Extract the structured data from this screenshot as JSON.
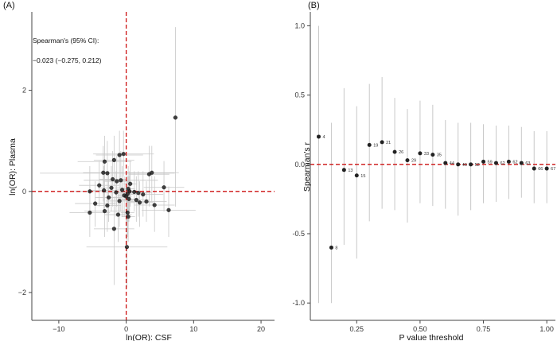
{
  "chart_data": [
    {
      "type": "scatter",
      "panel_label": "(A)",
      "xlabel": "ln(OR): CSF",
      "ylabel": "ln(OR): Plasma",
      "xlim": [
        -14,
        22
      ],
      "ylim": [
        -2.55,
        3.55
      ],
      "xticks": [
        -10,
        0,
        10,
        20
      ],
      "yticks": [
        -2,
        0,
        2
      ],
      "ref_lines": {
        "x": 0,
        "y": 0,
        "color": "#cc1111"
      },
      "grid": false,
      "annotation": {
        "line1": "Spearman's    (95% CI):",
        "line2": "−0.023  (−0.275,  0.212)"
      },
      "points": [
        {
          "x": 7.3,
          "y": 1.46,
          "xerr": 0.4,
          "ylo": -0.3,
          "yhi": 3.25
        },
        {
          "x": -0.4,
          "y": 0.74,
          "xerr": 4.5,
          "ylo": 0.3,
          "yhi": 1.2
        },
        {
          "x": -1.0,
          "y": 0.72,
          "xerr": 3.5,
          "ylo": 0.2,
          "yhi": 1.2
        },
        {
          "x": -1.8,
          "y": 0.62,
          "xerr": 3.0,
          "ylo": 0.1,
          "yhi": 1.1
        },
        {
          "x": -3.2,
          "y": 0.59,
          "xerr": 4.0,
          "ylo": 0.0,
          "yhi": 1.1
        },
        {
          "x": -3.4,
          "y": 0.37,
          "xerr": 3.0,
          "ylo": -0.2,
          "yhi": 0.9
        },
        {
          "x": -2.8,
          "y": 0.36,
          "xerr": 10.0,
          "ylo": -0.3,
          "yhi": 1.0
        },
        {
          "x": 3.8,
          "y": 0.37,
          "xerr": 4.0,
          "ylo": -0.2,
          "yhi": 0.9
        },
        {
          "x": 3.4,
          "y": 0.34,
          "xerr": 3.0,
          "ylo": -0.3,
          "yhi": 0.9
        },
        {
          "x": -2.0,
          "y": 0.24,
          "xerr": 2.0,
          "ylo": -0.3,
          "yhi": 0.8
        },
        {
          "x": -1.4,
          "y": 0.2,
          "xerr": 2.0,
          "ylo": -0.3,
          "yhi": 0.7
        },
        {
          "x": -0.8,
          "y": 0.22,
          "xerr": 5.5,
          "ylo": -0.4,
          "yhi": 0.8
        },
        {
          "x": 0.6,
          "y": 0.15,
          "xerr": 1.0,
          "ylo": -0.3,
          "yhi": 0.6
        },
        {
          "x": -4.0,
          "y": 0.12,
          "xerr": 3.0,
          "ylo": -0.3,
          "yhi": 0.6
        },
        {
          "x": 5.6,
          "y": 0.08,
          "xerr": 3.0,
          "ylo": -0.4,
          "yhi": 0.6
        },
        {
          "x": -2.2,
          "y": 0.07,
          "xerr": 2.0,
          "ylo": -0.4,
          "yhi": 0.5
        },
        {
          "x": 0.3,
          "y": 0.05,
          "xerr": 1.0,
          "ylo": -0.4,
          "yhi": 0.5
        },
        {
          "x": -0.6,
          "y": 0.03,
          "xerr": 1.0,
          "ylo": -0.5,
          "yhi": 0.5
        },
        {
          "x": -3.3,
          "y": 0.02,
          "xerr": 2.0,
          "ylo": -0.4,
          "yhi": 0.5
        },
        {
          "x": 0.5,
          "y": 0.0,
          "xerr": 1.0,
          "ylo": -0.4,
          "yhi": 0.4
        },
        {
          "x": 1.2,
          "y": -0.01,
          "xerr": 1.5,
          "ylo": -0.4,
          "yhi": 0.4
        },
        {
          "x": -5.4,
          "y": 0.0,
          "xerr": 3.0,
          "ylo": -0.5,
          "yhi": 0.5
        },
        {
          "x": -1.5,
          "y": -0.02,
          "xerr": 2.0,
          "ylo": -0.5,
          "yhi": 0.4
        },
        {
          "x": 1.8,
          "y": -0.03,
          "xerr": 2.0,
          "ylo": -0.5,
          "yhi": 0.4
        },
        {
          "x": 0.2,
          "y": -0.05,
          "xerr": 1.0,
          "ylo": -0.4,
          "yhi": 0.3
        },
        {
          "x": 2.5,
          "y": -0.06,
          "xerr": 3.0,
          "ylo": -0.5,
          "yhi": 0.4
        },
        {
          "x": -0.3,
          "y": -0.08,
          "xerr": 1.0,
          "ylo": -0.5,
          "yhi": 0.3
        },
        {
          "x": 0.0,
          "y": -0.1,
          "xerr": 0.8,
          "ylo": -0.6,
          "yhi": 0.4
        },
        {
          "x": -2.6,
          "y": -0.12,
          "xerr": 2.0,
          "ylo": -0.6,
          "yhi": 0.4
        },
        {
          "x": 0.4,
          "y": -0.15,
          "xerr": 1.5,
          "ylo": -0.6,
          "yhi": 0.3
        },
        {
          "x": 1.5,
          "y": -0.17,
          "xerr": 2.0,
          "ylo": -0.6,
          "yhi": 0.3
        },
        {
          "x": -1.0,
          "y": -0.19,
          "xerr": 2.0,
          "ylo": -0.7,
          "yhi": 0.3
        },
        {
          "x": 3.0,
          "y": -0.2,
          "xerr": 3.0,
          "ylo": -0.6,
          "yhi": 0.2
        },
        {
          "x": 2.0,
          "y": -0.22,
          "xerr": 2.0,
          "ylo": -0.7,
          "yhi": 0.2
        },
        {
          "x": 4.2,
          "y": -0.27,
          "xerr": 3.0,
          "ylo": -0.8,
          "yhi": 0.3
        },
        {
          "x": -4.6,
          "y": -0.24,
          "xerr": 3.0,
          "ylo": -0.7,
          "yhi": 0.2
        },
        {
          "x": -2.8,
          "y": -0.28,
          "xerr": 2.0,
          "ylo": -0.8,
          "yhi": 0.2
        },
        {
          "x": 6.3,
          "y": -0.37,
          "xerr": 4.0,
          "ylo": -0.9,
          "yhi": 0.1
        },
        {
          "x": -5.4,
          "y": -0.42,
          "xerr": 3.0,
          "ylo": -0.9,
          "yhi": 0.1
        },
        {
          "x": -3.2,
          "y": -0.39,
          "xerr": 3.0,
          "ylo": -0.9,
          "yhi": 0.1
        },
        {
          "x": 0.2,
          "y": -0.42,
          "xerr": 1.0,
          "ylo": -0.9,
          "yhi": 0.1
        },
        {
          "x": -1.2,
          "y": -0.46,
          "xerr": 2.0,
          "ylo": -1.0,
          "yhi": 0.0
        },
        {
          "x": 0.3,
          "y": -0.5,
          "xerr": 1.0,
          "ylo": -1.0,
          "yhi": 0.0
        },
        {
          "x": -1.8,
          "y": -0.74,
          "xerr": 3.0,
          "ylo": -1.85,
          "yhi": -0.1
        },
        {
          "x": 0.1,
          "y": -1.1,
          "xerr": 6.0,
          "ylo": -1.9,
          "yhi": -0.3
        }
      ]
    },
    {
      "type": "scatter",
      "panel_label": "(B)",
      "xlabel": "P value threshold",
      "ylabel": "Spearman's r",
      "xlim": [
        0.067,
        1.034
      ],
      "ylim": [
        -1.125,
        1.1
      ],
      "xticks": [
        0.25,
        0.5,
        0.75,
        1.0
      ],
      "xtick_labels": [
        "0.25",
        "0.50",
        "0.75",
        "1.00"
      ],
      "yticks": [
        -1.0,
        -0.5,
        0.0,
        0.5,
        1.0
      ],
      "ytick_labels": [
        "-1.0",
        "-0.5",
        "0.0",
        "0.5",
        "1.0"
      ],
      "ref_line_y": 0,
      "grid": false,
      "points": [
        {
          "x": 0.1,
          "r": 0.2,
          "lo": -1.0,
          "hi": 1.0,
          "label": "4"
        },
        {
          "x": 0.15,
          "r": -0.6,
          "lo": -1.0,
          "hi": 0.3,
          "label": "8"
        },
        {
          "x": 0.2,
          "r": -0.04,
          "lo": -0.58,
          "hi": 0.55,
          "label": "13"
        },
        {
          "x": 0.25,
          "r": -0.08,
          "lo": -0.68,
          "hi": 0.42,
          "label": "15"
        },
        {
          "x": 0.3,
          "r": 0.14,
          "lo": -0.41,
          "hi": 0.58,
          "label": "19"
        },
        {
          "x": 0.35,
          "r": 0.16,
          "lo": -0.32,
          "hi": 0.63,
          "label": "21"
        },
        {
          "x": 0.4,
          "r": 0.09,
          "lo": -0.33,
          "hi": 0.48,
          "label": "26"
        },
        {
          "x": 0.45,
          "r": 0.03,
          "lo": -0.42,
          "hi": 0.4,
          "label": "29"
        },
        {
          "x": 0.5,
          "r": 0.08,
          "lo": -0.28,
          "hi": 0.46,
          "label": "33"
        },
        {
          "x": 0.55,
          "r": 0.07,
          "lo": -0.3,
          "hi": 0.43,
          "label": "35"
        },
        {
          "x": 0.6,
          "r": 0.01,
          "lo": -0.32,
          "hi": 0.32,
          "label": "44"
        },
        {
          "x": 0.65,
          "r": 0.0,
          "lo": -0.37,
          "hi": 0.3,
          "label": "46"
        },
        {
          "x": 0.7,
          "r": 0.0,
          "lo": -0.33,
          "hi": 0.3,
          "label": "52"
        },
        {
          "x": 0.75,
          "r": 0.02,
          "lo": -0.28,
          "hi": 0.29,
          "label": "59"
        },
        {
          "x": 0.8,
          "r": 0.01,
          "lo": -0.27,
          "hi": 0.28,
          "label": "62"
        },
        {
          "x": 0.85,
          "r": 0.02,
          "lo": -0.25,
          "hi": 0.28,
          "label": "62"
        },
        {
          "x": 0.9,
          "r": 0.01,
          "lo": -0.24,
          "hi": 0.27,
          "label": "63"
        },
        {
          "x": 0.95,
          "r": -0.03,
          "lo": -0.28,
          "hi": 0.24,
          "label": "66"
        },
        {
          "x": 1.0,
          "r": -0.03,
          "lo": -0.28,
          "hi": 0.24,
          "label": "67"
        }
      ]
    }
  ],
  "colors": {
    "points": "#222222",
    "errorbars": "#c8c8c8",
    "refline": "#cc1111",
    "axis": "#444444"
  }
}
